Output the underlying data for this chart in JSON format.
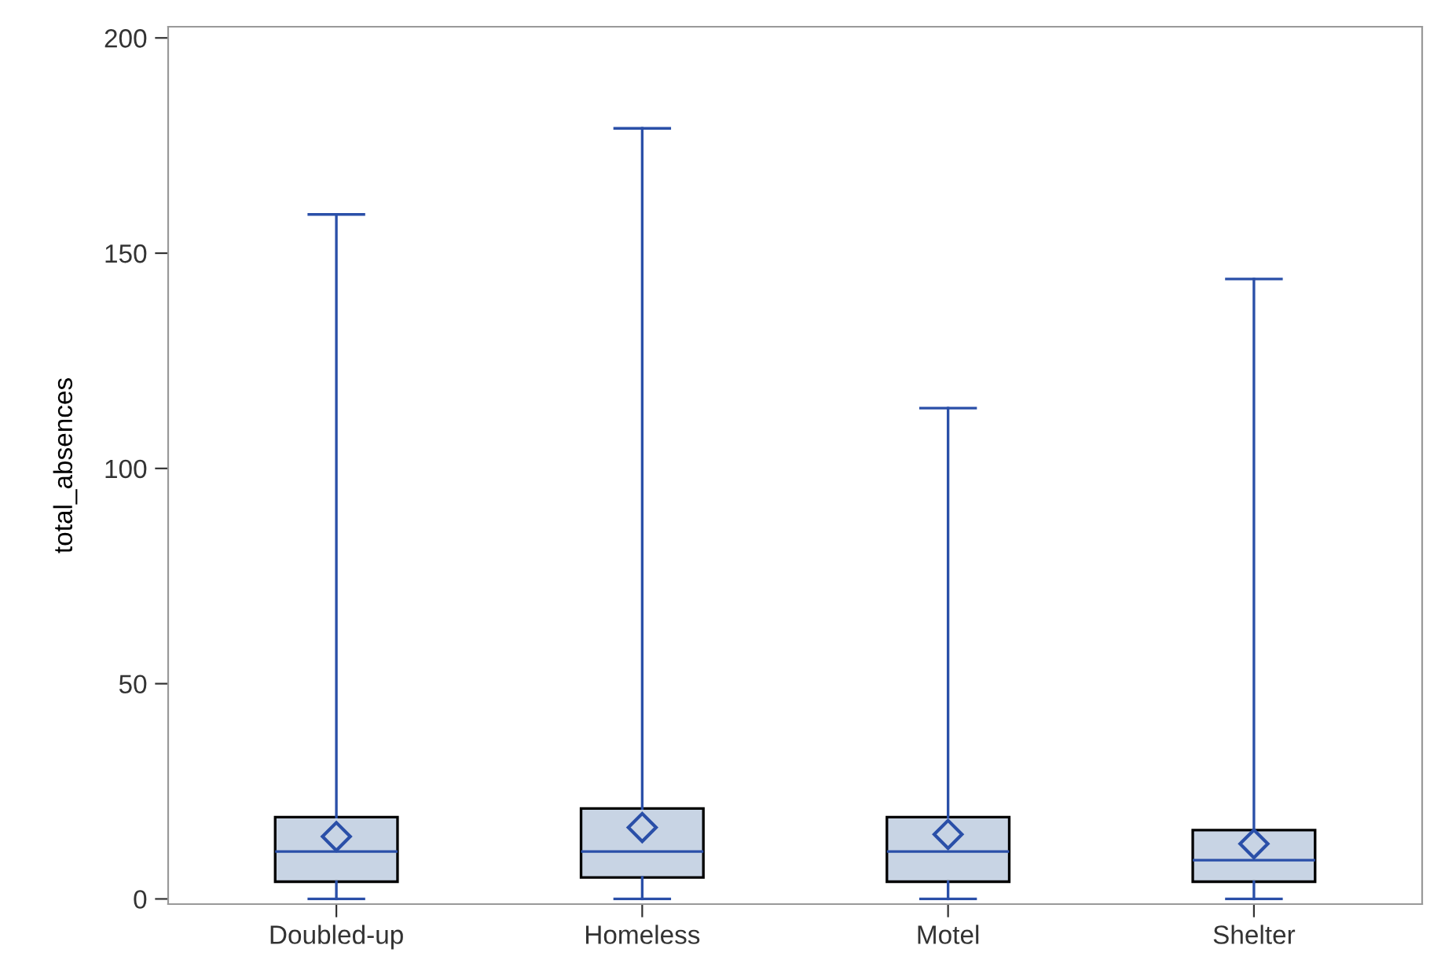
{
  "chart_data": {
    "type": "box",
    "ylabel": "total_absences",
    "categories": [
      "Doubled-up",
      "Homeless",
      "Motel",
      "Shelter"
    ],
    "series": [
      {
        "color": "#2a4fa8",
        "colors": [
          "#c8d4e4",
          "#c8d4e4",
          "#c8d4e4",
          "#c8d4e4"
        ],
        "boxes": [
          {
            "low": 0,
            "q1": 4,
            "median": 11,
            "q3": 19,
            "high": 159,
            "mean": 14.5
          },
          {
            "low": 0,
            "q1": 5,
            "median": 11,
            "q3": 21,
            "high": 179,
            "mean": 16.6
          },
          {
            "low": 0,
            "q1": 4,
            "median": 11,
            "q3": 19,
            "high": 114,
            "mean": 15
          },
          {
            "low": 0,
            "q1": 4,
            "median": 9,
            "q3": 16,
            "high": 144,
            "mean": 12.8
          }
        ]
      }
    ],
    "ylim": [
      -1.2,
      202.6
    ],
    "yticks": [
      0,
      50,
      100,
      150,
      200
    ],
    "grid": false,
    "marker": "diamond"
  }
}
